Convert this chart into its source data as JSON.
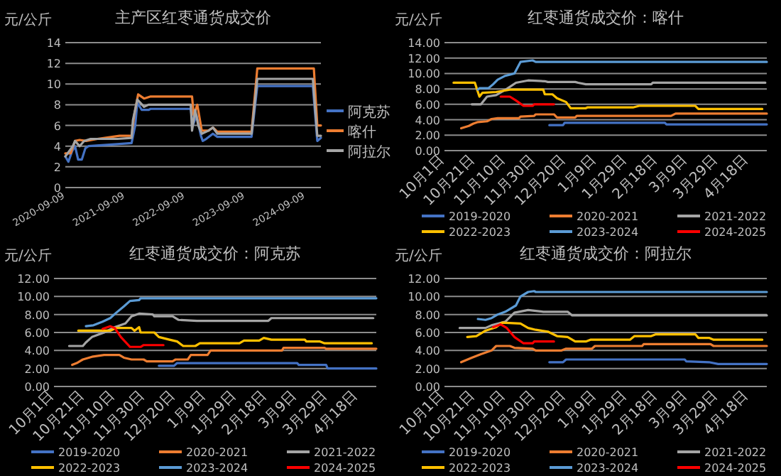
{
  "chart_data": [
    {
      "type": "line",
      "title": "主产区红枣通货成交价",
      "ylabel": "元/公斤",
      "grid": "y",
      "legend": "right",
      "xlim": [
        "2020-09-09",
        "2024-12-12"
      ],
      "xticks": [
        "2020-09-09",
        "2021-09-09",
        "2022-09-09",
        "2023-09-09",
        "2024-09-09"
      ],
      "ylim": [
        0,
        14
      ],
      "yticks": [
        0,
        2,
        4,
        6,
        8,
        10,
        12,
        14
      ],
      "series": [
        {
          "name": "阿克苏",
          "color": "#4472c4",
          "x": [
            "2020-09-09",
            "2020-09-28",
            "2020-10-20",
            "2020-11-07",
            "2020-11-26",
            "2020-12-18",
            "2021-01-09",
            "2021-01-28",
            "2021-07-22",
            "2021-10-17",
            "2021-11-08",
            "2021-11-21",
            "2021-12-18",
            "2022-01-28",
            "2022-02-10",
            "2022-10-12",
            "2022-10-25",
            "2022-11-16",
            "2022-12-13",
            "2022-12-24",
            "2023-01-14",
            "2023-02-24",
            "2023-03-23",
            "2023-10-17",
            "2023-11-21",
            "2024-10-24",
            "2024-11-20",
            "2024-12-12"
          ],
          "values": [
            3.0,
            2.5,
            3.5,
            4.0,
            2.7,
            2.7,
            3.8,
            4.0,
            4.2,
            4.3,
            6.0,
            8.2,
            7.5,
            7.5,
            7.6,
            7.6,
            6.0,
            7.0,
            5.0,
            4.5,
            4.7,
            5.2,
            4.9,
            4.9,
            9.8,
            9.8,
            4.5,
            4.8
          ]
        },
        {
          "name": "喀什",
          "color": "#ed7d31",
          "x": [
            "2020-09-09",
            "2020-10-11",
            "2020-11-07",
            "2020-12-05",
            "2021-01-14",
            "2021-03-23",
            "2021-08-05",
            "2021-10-17",
            "2021-11-02",
            "2021-11-26",
            "2022-01-01",
            "2022-02-10",
            "2022-10-20",
            "2022-10-30",
            "2022-11-21",
            "2022-12-18",
            "2023-01-28",
            "2023-02-24",
            "2023-03-23",
            "2023-10-17",
            "2023-11-21",
            "2024-10-30",
            "2024-11-20",
            "2024-12-12"
          ],
          "values": [
            3.3,
            3.3,
            4.5,
            4.6,
            4.5,
            4.7,
            5.0,
            5.0,
            7.0,
            9.0,
            8.6,
            8.8,
            8.8,
            7.0,
            8.0,
            5.5,
            5.5,
            5.8,
            5.4,
            5.4,
            11.5,
            11.5,
            6.0,
            6.0
          ]
        },
        {
          "name": "阿拉尔",
          "color": "#a5a5a5",
          "x": [
            "2020-09-09",
            "2020-10-25",
            "2020-11-07",
            "2020-12-05",
            "2021-01-01",
            "2021-02-10",
            "2021-07-22",
            "2021-10-17",
            "2021-10-25",
            "2021-11-21",
            "2022-01-01",
            "2022-01-28",
            "2022-10-12",
            "2022-10-20",
            "2022-11-08",
            "2022-11-27",
            "2022-12-18",
            "2023-01-28",
            "2023-02-24",
            "2023-03-23",
            "2023-10-17",
            "2023-11-21",
            "2024-10-24",
            "2024-11-20",
            "2024-12-12"
          ],
          "values": [
            3.0,
            4.0,
            4.5,
            4.0,
            4.5,
            4.7,
            4.7,
            4.8,
            6.5,
            8.5,
            7.8,
            8.0,
            8.0,
            5.5,
            7.5,
            6.0,
            5.2,
            5.5,
            5.8,
            5.2,
            5.2,
            10.5,
            10.5,
            5.0,
            5.0
          ]
        }
      ]
    },
    {
      "type": "line",
      "title": "红枣通货成交价：喀什",
      "ylabel": "元/公斤",
      "grid": "y",
      "legend": "bottom",
      "xlim": [
        "2019-10-01",
        "2020-04-30"
      ],
      "xticks": [
        {
          "value": "2019-10-01",
          "label": "10月1日"
        },
        {
          "value": "2019-10-21",
          "label": "10月21日"
        },
        {
          "value": "2019-11-10",
          "label": "11月10日"
        },
        {
          "value": "2019-11-30",
          "label": "11月30日"
        },
        {
          "value": "2019-12-20",
          "label": "12月20日"
        },
        {
          "value": "2020-01-09",
          "label": "1月9日"
        },
        {
          "value": "2020-01-29",
          "label": "1月29日"
        },
        {
          "value": "2020-02-18",
          "label": "2月18日"
        },
        {
          "value": "2020-03-09",
          "label": "3月9日"
        },
        {
          "value": "2020-03-29",
          "label": "3月29日"
        },
        {
          "value": "2020-04-18",
          "label": "4月18日"
        }
      ],
      "ylim": [
        0,
        14
      ],
      "yticks": [
        {
          "value": 0,
          "label": "0.00"
        },
        {
          "value": 2,
          "label": "2.00"
        },
        {
          "value": 4,
          "label": "4.00"
        },
        {
          "value": 6,
          "label": "6.00"
        },
        {
          "value": 8,
          "label": "8.00"
        },
        {
          "value": 10,
          "label": "10.00"
        },
        {
          "value": 12,
          "label": "12.00"
        },
        {
          "value": 14,
          "label": "14.00"
        }
      ],
      "series": [
        {
          "name": "2019-2020",
          "color": "#4472c4",
          "x": [
            "2019-12-09",
            "2019-12-18",
            "2019-12-19",
            "2020-02-23",
            "2020-02-24",
            "2020-04-30"
          ],
          "values": [
            3.3,
            3.3,
            3.6,
            3.6,
            3.4,
            3.4
          ]
        },
        {
          "name": "2020-2021",
          "color": "#ed7d31",
          "x": [
            "2019-10-12",
            "2019-10-17",
            "2019-10-20",
            "2019-10-23",
            "2019-10-29",
            "2019-11-01",
            "2019-11-05",
            "2019-11-19",
            "2019-11-20",
            "2019-11-29",
            "2019-11-30",
            "2019-12-12",
            "2019-12-14",
            "2019-12-26",
            "2019-12-27",
            "2020-02-27",
            "2020-03-01",
            "2020-04-30"
          ],
          "values": [
            2.9,
            3.2,
            3.5,
            3.7,
            3.8,
            4.1,
            4.2,
            4.2,
            4.4,
            4.5,
            4.7,
            4.7,
            4.3,
            4.3,
            4.5,
            4.5,
            4.8,
            4.8
          ]
        },
        {
          "name": "2021-2022",
          "color": "#a5a5a5",
          "x": [
            "2019-10-19",
            "2019-10-25",
            "2019-10-29",
            "2019-11-04",
            "2019-11-11",
            "2019-11-17",
            "2019-11-25",
            "2019-12-06",
            "2019-12-08",
            "2019-12-26",
            "2019-12-28",
            "2020-01-02",
            "2020-02-14",
            "2020-02-15",
            "2020-04-29"
          ],
          "values": [
            6.0,
            6.0,
            7.0,
            7.2,
            8.0,
            8.8,
            9.1,
            9.0,
            8.9,
            8.9,
            8.8,
            8.6,
            8.6,
            8.8,
            8.8
          ]
        },
        {
          "name": "2022-2023",
          "color": "#ffc000",
          "x": [
            "2019-10-07",
            "2019-10-21",
            "2019-10-24",
            "2019-10-26",
            "2019-11-04",
            "2019-11-13",
            "2019-12-05",
            "2019-12-06",
            "2019-12-11",
            "2019-12-14",
            "2019-12-20",
            "2019-12-23",
            "2020-01-02",
            "2020-01-03",
            "2020-02-02",
            "2020-02-06",
            "2020-03-14",
            "2020-03-16",
            "2020-04-27"
          ],
          "values": [
            8.8,
            8.8,
            7.0,
            7.5,
            7.6,
            7.9,
            7.9,
            7.3,
            7.3,
            6.8,
            6.3,
            5.5,
            5.5,
            5.6,
            5.6,
            5.8,
            5.8,
            5.4,
            5.4
          ]
        },
        {
          "name": "2023-2024",
          "color": "#5b9bd5",
          "x": [
            "2019-10-23",
            "2019-10-24",
            "2019-10-30",
            "2019-11-02",
            "2019-11-05",
            "2019-11-10",
            "2019-11-16",
            "2019-11-20",
            "2019-11-28",
            "2019-11-30",
            "2020-04-30"
          ],
          "values": [
            7.9,
            8.1,
            8.1,
            8.6,
            9.2,
            9.7,
            10.0,
            11.5,
            11.7,
            11.5,
            11.5
          ]
        },
        {
          "name": "2024-2025",
          "color": "#ff0000",
          "x": [
            "2019-11-07",
            "2019-11-13",
            "2019-11-17",
            "2019-11-22",
            "2019-11-28",
            "2019-11-29",
            "2019-12-12"
          ],
          "values": [
            7.0,
            7.0,
            6.5,
            5.8,
            5.8,
            6.0,
            6.0
          ]
        }
      ]
    },
    {
      "type": "line",
      "title": "红枣通货成交价：阿克苏",
      "ylabel": "元/公斤",
      "grid": "y",
      "legend": "bottom",
      "xlim": [
        "2019-10-01",
        "2020-04-30"
      ],
      "xticks": [
        {
          "value": "2019-10-01",
          "label": "10月1日"
        },
        {
          "value": "2019-10-21",
          "label": "10月21日"
        },
        {
          "value": "2019-11-10",
          "label": "11月10日"
        },
        {
          "value": "2019-11-30",
          "label": "11月30日"
        },
        {
          "value": "2019-12-20",
          "label": "12月20日"
        },
        {
          "value": "2020-01-09",
          "label": "1月9日"
        },
        {
          "value": "2020-01-29",
          "label": "1月29日"
        },
        {
          "value": "2020-02-18",
          "label": "2月18日"
        },
        {
          "value": "2020-03-09",
          "label": "3月9日"
        },
        {
          "value": "2020-03-29",
          "label": "3月29日"
        },
        {
          "value": "2020-04-18",
          "label": "4月18日"
        }
      ],
      "ylim": [
        0,
        12
      ],
      "yticks": [
        {
          "value": 0,
          "label": "0.00"
        },
        {
          "value": 2,
          "label": "2.00"
        },
        {
          "value": 4,
          "label": "4.00"
        },
        {
          "value": 6,
          "label": "6.00"
        },
        {
          "value": 8,
          "label": "8.00"
        },
        {
          "value": 10,
          "label": "10.00"
        },
        {
          "value": 12,
          "label": "12.00"
        }
      ],
      "series": [
        {
          "name": "2019-2020",
          "color": "#4472c4",
          "x": [
            "2019-12-09",
            "2019-12-19",
            "2019-12-21",
            "2020-03-09",
            "2020-03-10",
            "2020-03-28",
            "2020-03-29",
            "2020-04-30"
          ],
          "values": [
            2.3,
            2.3,
            2.6,
            2.6,
            2.4,
            2.4,
            2.0,
            2.0
          ]
        },
        {
          "name": "2020-2021",
          "color": "#ed7d31",
          "x": [
            "2019-10-13",
            "2019-10-16",
            "2019-10-20",
            "2019-10-26",
            "2019-11-03",
            "2019-11-13",
            "2019-11-16",
            "2019-11-21",
            "2019-11-29",
            "2019-12-01",
            "2019-12-18",
            "2019-12-20",
            "2019-12-28",
            "2019-12-30",
            "2020-01-10",
            "2020-01-12",
            "2020-02-28",
            "2020-02-29",
            "2020-03-27",
            "2020-03-28",
            "2020-04-30"
          ],
          "values": [
            2.4,
            2.6,
            3.0,
            3.3,
            3.5,
            3.5,
            3.2,
            3.0,
            3.0,
            2.8,
            2.8,
            3.0,
            3.0,
            3.5,
            3.5,
            4.0,
            4.0,
            4.3,
            4.3,
            4.2,
            4.2
          ]
        },
        {
          "name": "2021-2022",
          "color": "#a5a5a5",
          "x": [
            "2019-10-11",
            "2019-10-20",
            "2019-10-22",
            "2019-10-26",
            "2019-11-03",
            "2019-11-10",
            "2019-11-17",
            "2019-11-21",
            "2019-11-26",
            "2019-12-05",
            "2019-12-06",
            "2019-12-18",
            "2019-12-22",
            "2020-01-03",
            "2020-02-19",
            "2020-02-21",
            "2020-04-28"
          ],
          "values": [
            4.5,
            4.5,
            4.9,
            5.5,
            6.0,
            6.6,
            7.0,
            7.8,
            8.1,
            8.0,
            7.8,
            7.8,
            7.4,
            7.3,
            7.3,
            7.6,
            7.6
          ]
        },
        {
          "name": "2022-2023",
          "color": "#ffc000",
          "x": [
            "2019-10-17",
            "2019-11-07",
            "2019-11-11",
            "2019-11-21",
            "2019-11-23",
            "2019-11-26",
            "2019-11-27",
            "2019-12-06",
            "2019-12-09",
            "2019-12-16",
            "2019-12-21",
            "2019-12-25",
            "2020-01-02",
            "2020-01-05",
            "2020-01-31",
            "2020-02-03",
            "2020-02-13",
            "2020-02-16",
            "2020-02-21",
            "2020-03-14",
            "2020-03-15",
            "2020-03-24",
            "2020-03-27",
            "2020-04-27"
          ],
          "values": [
            6.2,
            6.2,
            6.5,
            6.5,
            6.2,
            6.6,
            6.0,
            6.0,
            5.5,
            5.2,
            5.0,
            4.5,
            4.5,
            4.8,
            4.8,
            5.1,
            5.1,
            5.4,
            5.2,
            5.2,
            5.0,
            5.0,
            4.8,
            4.8
          ]
        },
        {
          "name": "2023-2024",
          "color": "#5b9bd5",
          "x": [
            "2019-10-22",
            "2019-10-27",
            "2019-11-02",
            "2019-11-07",
            "2019-11-11",
            "2019-11-16",
            "2019-11-20",
            "2019-11-26",
            "2019-11-27",
            "2020-04-30"
          ],
          "values": [
            6.7,
            6.8,
            7.2,
            7.6,
            8.2,
            8.9,
            9.5,
            9.6,
            9.8,
            9.8
          ]
        },
        {
          "name": "2024-2025",
          "color": "#ff0000",
          "x": [
            "2019-11-02",
            "2019-11-07",
            "2019-11-10",
            "2019-11-14",
            "2019-11-20",
            "2019-11-27",
            "2019-11-29",
            "2019-12-12"
          ],
          "values": [
            6.4,
            6.7,
            6.5,
            5.5,
            4.4,
            4.4,
            4.6,
            4.6
          ]
        }
      ]
    },
    {
      "type": "line",
      "title": "红枣通货成交价：阿拉尔",
      "ylabel": "元/公斤",
      "grid": "y",
      "legend": "bottom",
      "xlim": [
        "2019-10-01",
        "2020-04-30"
      ],
      "xticks": [
        {
          "value": "2019-10-01",
          "label": "10月1日"
        },
        {
          "value": "2019-10-21",
          "label": "10月21日"
        },
        {
          "value": "2019-11-10",
          "label": "11月10日"
        },
        {
          "value": "2019-11-30",
          "label": "11月30日"
        },
        {
          "value": "2019-12-20",
          "label": "12月20日"
        },
        {
          "value": "2020-01-09",
          "label": "1月9日"
        },
        {
          "value": "2020-01-29",
          "label": "1月29日"
        },
        {
          "value": "2020-02-18",
          "label": "2月18日"
        },
        {
          "value": "2020-03-09",
          "label": "3月9日"
        },
        {
          "value": "2020-03-29",
          "label": "3月29日"
        },
        {
          "value": "2020-04-18",
          "label": "4月18日"
        }
      ],
      "ylim": [
        0,
        12
      ],
      "yticks": [
        {
          "value": 0,
          "label": "0.00"
        },
        {
          "value": 2,
          "label": "2.00"
        },
        {
          "value": 4,
          "label": "4.00"
        },
        {
          "value": 6,
          "label": "6.00"
        },
        {
          "value": 8,
          "label": "8.00"
        },
        {
          "value": 10,
          "label": "10.00"
        },
        {
          "value": 12,
          "label": "12.00"
        }
      ],
      "series": [
        {
          "name": "2019-2020",
          "color": "#4472c4",
          "x": [
            "2019-12-09",
            "2019-12-18",
            "2019-12-20",
            "2020-03-07",
            "2020-03-08",
            "2020-03-23",
            "2020-03-29",
            "2020-04-30"
          ],
          "values": [
            2.7,
            2.7,
            3.0,
            3.0,
            2.8,
            2.7,
            2.5,
            2.5
          ]
        },
        {
          "name": "2020-2021",
          "color": "#ed7d31",
          "x": [
            "2019-10-12",
            "2019-10-19",
            "2019-10-25",
            "2019-11-01",
            "2019-11-04",
            "2019-11-13",
            "2019-11-16",
            "2019-11-28",
            "2019-11-30",
            "2019-12-17",
            "2019-12-20",
            "2020-01-06",
            "2020-01-08",
            "2020-02-08",
            "2020-02-09",
            "2020-03-24",
            "2020-03-26",
            "2020-04-30"
          ],
          "values": [
            2.7,
            3.2,
            3.6,
            4.0,
            4.5,
            4.5,
            4.3,
            4.2,
            4.0,
            4.0,
            4.2,
            4.2,
            4.5,
            4.5,
            4.7,
            4.7,
            4.5,
            4.5
          ]
        },
        {
          "name": "2021-2022",
          "color": "#a5a5a5",
          "x": [
            "2019-10-11",
            "2019-10-28",
            "2019-11-01",
            "2019-11-10",
            "2019-11-16",
            "2019-11-25",
            "2019-12-05",
            "2019-12-21",
            "2019-12-24",
            "2020-04-30"
          ],
          "values": [
            6.5,
            6.5,
            6.8,
            7.2,
            8.2,
            8.5,
            8.3,
            8.3,
            7.9,
            7.9
          ]
        },
        {
          "name": "2022-2023",
          "color": "#ffc000",
          "x": [
            "2019-10-16",
            "2019-10-22",
            "2019-10-28",
            "2019-11-04",
            "2019-11-08",
            "2019-11-20",
            "2019-11-25",
            "2019-11-30",
            "2019-12-08",
            "2019-12-14",
            "2019-12-21",
            "2019-12-26",
            "2020-01-02",
            "2020-01-05",
            "2020-01-31",
            "2020-02-03",
            "2020-02-14",
            "2020-02-17",
            "2020-03-14",
            "2020-03-16",
            "2020-03-23",
            "2020-03-26",
            "2020-04-27"
          ],
          "values": [
            5.5,
            5.6,
            6.2,
            6.6,
            7.1,
            7.0,
            6.5,
            6.3,
            6.1,
            5.6,
            5.5,
            5.0,
            5.0,
            5.2,
            5.2,
            5.6,
            5.6,
            5.8,
            5.8,
            5.4,
            5.4,
            5.2,
            5.2
          ]
        },
        {
          "name": "2023-2024",
          "color": "#5b9bd5",
          "x": [
            "2019-10-23",
            "2019-10-28",
            "2019-11-01",
            "2019-11-05",
            "2019-11-10",
            "2019-11-17",
            "2019-11-20",
            "2019-11-25",
            "2019-11-29",
            "2019-11-30",
            "2020-04-30"
          ],
          "values": [
            7.5,
            7.4,
            7.6,
            8.0,
            8.3,
            9.0,
            10.0,
            10.5,
            10.6,
            10.5,
            10.5
          ]
        },
        {
          "name": "2024-2025",
          "color": "#ff0000",
          "x": [
            "2019-11-02",
            "2019-11-07",
            "2019-11-11",
            "2019-11-16",
            "2019-11-22",
            "2019-11-28",
            "2019-11-29",
            "2019-12-12"
          ],
          "values": [
            6.6,
            6.9,
            6.5,
            5.5,
            4.8,
            4.8,
            5.0,
            5.0
          ]
        }
      ]
    }
  ]
}
